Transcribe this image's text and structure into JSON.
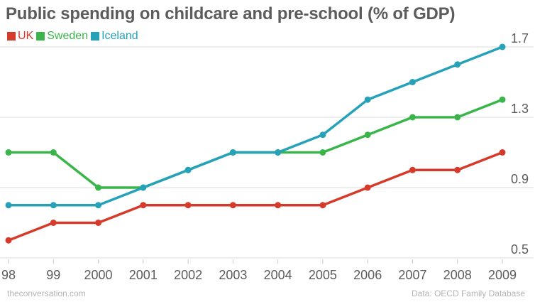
{
  "chart_data": {
    "type": "line",
    "title": "Public spending on childcare and pre-school (% of GDP)",
    "xlabel": "",
    "ylabel": "",
    "categories": [
      "98",
      "99",
      "2000",
      "2001",
      "2002",
      "2003",
      "2004",
      "2005",
      "2006",
      "2007",
      "2008",
      "2009"
    ],
    "ylim": [
      0.5,
      1.7
    ],
    "yticks": [
      "0.5",
      "0.9",
      "1.3",
      "1.7"
    ],
    "grid": true,
    "legend_position": "top-left",
    "series": [
      {
        "name": "UK",
        "color": "#d63a2a",
        "values": [
          0.6,
          0.7,
          0.7,
          0.8,
          0.8,
          0.8,
          0.8,
          0.8,
          0.9,
          1.0,
          1.0,
          1.1
        ]
      },
      {
        "name": "Sweden",
        "color": "#3ab54a",
        "values": [
          1.1,
          1.1,
          0.9,
          0.9,
          1.0,
          1.1,
          1.1,
          1.1,
          1.2,
          1.3,
          1.3,
          1.4
        ]
      },
      {
        "name": "Iceland",
        "color": "#25a2b8",
        "values": [
          0.8,
          0.8,
          0.8,
          0.9,
          1.0,
          1.1,
          1.1,
          1.2,
          1.4,
          1.5,
          1.6,
          1.7
        ]
      }
    ]
  },
  "footer": {
    "source_left": "theconversation.com",
    "source_right": "Data: OECD Family Database"
  }
}
